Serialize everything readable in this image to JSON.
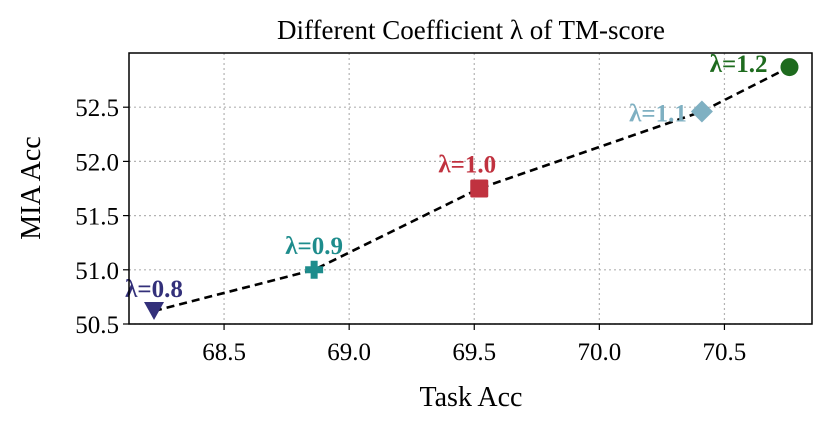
{
  "chart_data": {
    "type": "scatter",
    "title": "Different Coefficient λ of TM-score",
    "xlabel": "Task Acc",
    "ylabel": "MIA Acc",
    "xlim": [
      68.12,
      70.85
    ],
    "ylim": [
      50.5,
      53.0
    ],
    "xticks": [
      68.5,
      69.0,
      69.5,
      70.0,
      70.5
    ],
    "xtick_labels": [
      "68.5",
      "69.0",
      "69.5",
      "70.0",
      "70.5"
    ],
    "yticks": [
      50.5,
      51.0,
      51.5,
      52.0,
      52.5
    ],
    "ytick_labels": [
      "50.5",
      "51.0",
      "51.5",
      "52.0",
      "52.5"
    ],
    "grid": true,
    "trend_line": "dashed",
    "points": [
      {
        "label": "λ=0.8",
        "x": 68.22,
        "y": 50.62,
        "marker": "triangle-down",
        "color": "#33307a"
      },
      {
        "label": "λ=0.9",
        "x": 68.86,
        "y": 51.0,
        "marker": "plus",
        "color": "#1e8c8c"
      },
      {
        "label": "λ=1.0",
        "x": 69.52,
        "y": 51.75,
        "marker": "square",
        "color": "#c0323f"
      },
      {
        "label": "λ=1.1",
        "x": 70.41,
        "y": 52.46,
        "marker": "diamond",
        "color": "#7fb0c2"
      },
      {
        "label": "λ=1.2",
        "x": 70.76,
        "y": 52.87,
        "marker": "circle",
        "color": "#1e6b1e"
      }
    ]
  }
}
